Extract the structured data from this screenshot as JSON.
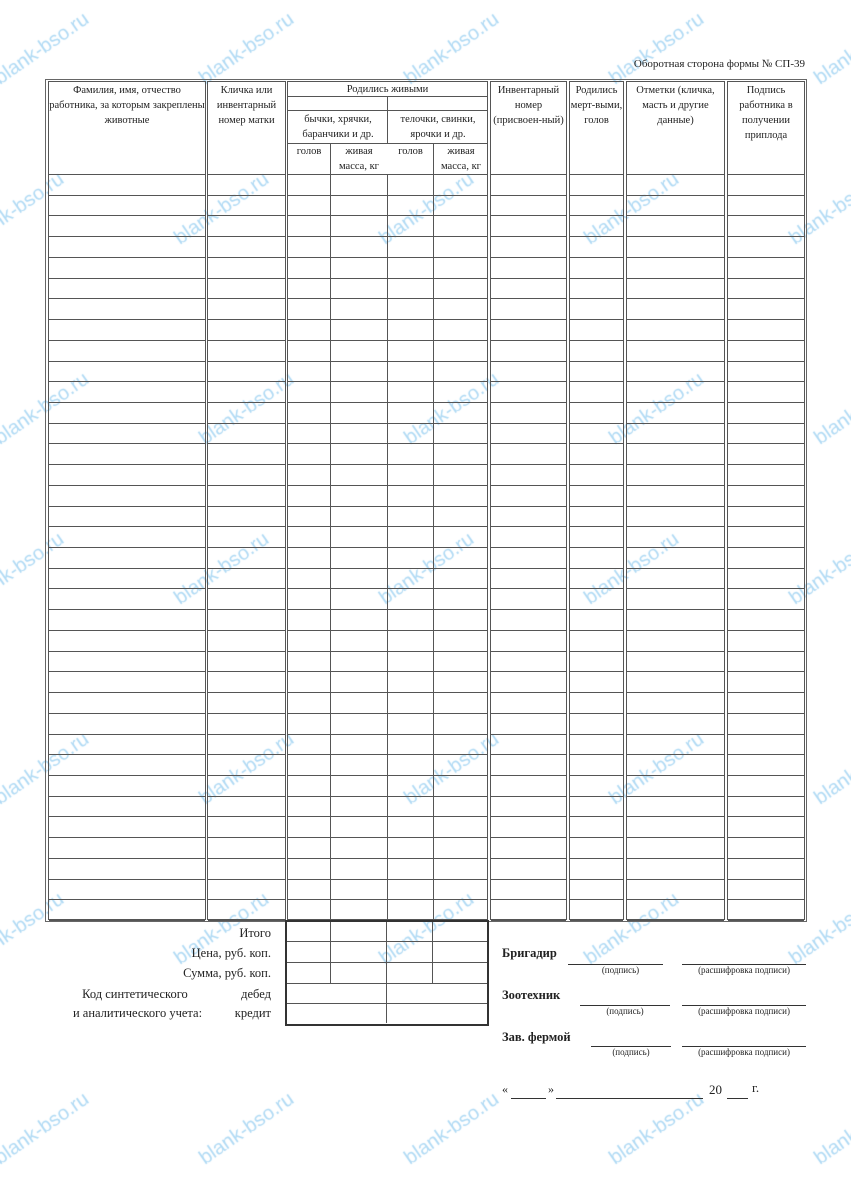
{
  "form_title": "Оборотная сторона формы № СП-39",
  "watermark": "blank-bso.ru",
  "table": {
    "headers": {
      "worker": "Фамилия, имя, отчество работника, за которым закреплены животные",
      "mother": "Кличка или инвентарный номер матки",
      "born_alive": "Родились живыми",
      "males": "бычки, хрячки, баранчики и др.",
      "females": "телочки, свинки, ярочки и др.",
      "heads": "голов",
      "live_weight": "живая масса, кг",
      "inventory": "Инвентарный номер (присвоен-ный)",
      "stillborn": "Родились мерт-выми, голов",
      "notes": "Отметки (кличка, масть и другие данные)",
      "signature": "Подпись работника в получении приплода"
    },
    "row_count": 36
  },
  "totals": {
    "total": "Итого",
    "price": "Цена, руб. коп.",
    "sum": "Сумма, руб. коп.",
    "code_line1": "Код синтетического",
    "code_line2": "и аналитического учета:",
    "debit": "дебед",
    "credit": "кредит"
  },
  "signatures": {
    "brigadier": "Бригадир",
    "zootechnician": "Зоотехник",
    "farm_head": "Зав. фермой",
    "sign_caption": "(подпись)",
    "decode_caption": "(расшифровка подписи)"
  },
  "date": {
    "open_quote": "«",
    "close_quote": "»",
    "century": "20",
    "year_suffix": "г."
  }
}
